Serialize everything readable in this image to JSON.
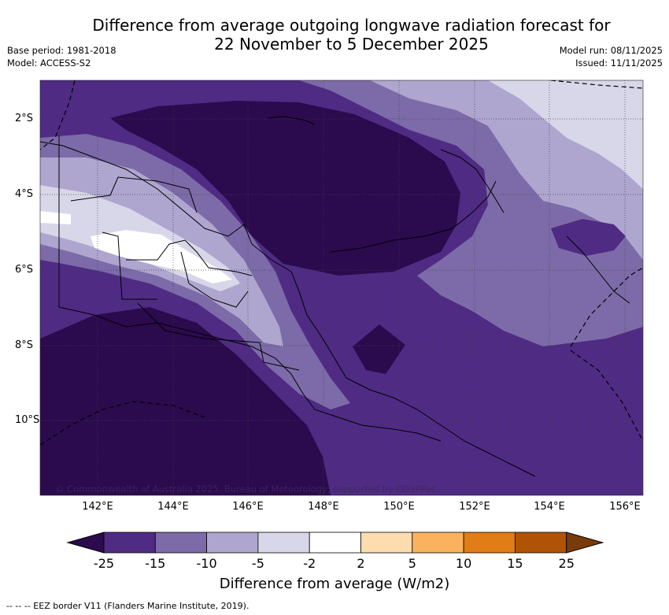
{
  "header": {
    "title_line1": "Difference from average outgoing longwave radiation forecast for",
    "title_line2": "22 November to 5 December 2025",
    "base_period": "Base period: 1981-2018",
    "model": "Model: ACCESS-S2",
    "model_run": "Model run: 08/11/2025",
    "issued": "Issued: 11/11/2025"
  },
  "map": {
    "lat_labels": [
      "2°S",
      "4°S",
      "6°S",
      "8°S",
      "10°S"
    ],
    "lon_labels": [
      "142°E",
      "144°E",
      "146°E",
      "148°E",
      "150°E",
      "152°E",
      "154°E",
      "156°E"
    ],
    "copyright": "© Commonwealth of Australia 2025, Bureau of Meteorology, supported by COSPPac"
  },
  "colorbar": {
    "tick_labels": [
      "-25",
      "-15",
      "-10",
      "-5",
      "-2",
      "2",
      "5",
      "10",
      "15",
      "25"
    ],
    "colors": [
      "#2b0a4e",
      "#4f2b84",
      "#7c6ba8",
      "#aea6cf",
      "#d8d7e9",
      "#ffffff",
      "#fddcb0",
      "#fbb25e",
      "#e07d17",
      "#b05306",
      "#7a3b0a"
    ],
    "title": "Difference from average (W/m2)"
  },
  "footnote": "-- --  -- EEZ border V11 (Flanders Marine Institute, 2019)."
}
